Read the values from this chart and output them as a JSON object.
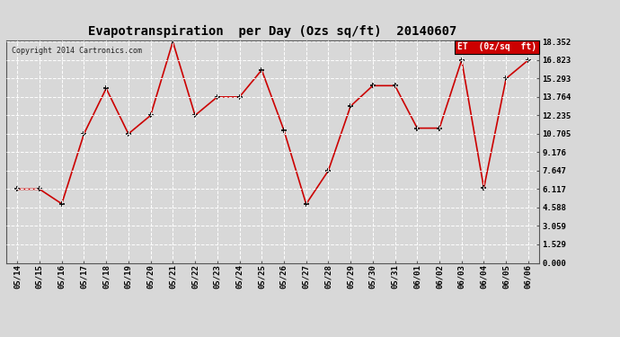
{
  "title": "Evapotranspiration  per Day (Ozs sq/ft)  20140607",
  "copyright": "Copyright 2014 Cartronics.com",
  "legend_label": "ET  (0z/sq  ft)",
  "x_labels": [
    "05/14",
    "05/15",
    "05/16",
    "05/17",
    "05/18",
    "05/19",
    "05/20",
    "05/21",
    "05/22",
    "05/23",
    "05/24",
    "05/25",
    "05/26",
    "05/27",
    "05/28",
    "05/29",
    "05/30",
    "05/31",
    "06/01",
    "06/02",
    "06/03",
    "06/04",
    "06/05",
    "06/06"
  ],
  "y_values": [
    6.117,
    6.117,
    4.9,
    10.705,
    14.47,
    10.705,
    12.235,
    18.352,
    12.235,
    13.764,
    13.764,
    16.0,
    11.0,
    4.88,
    7.647,
    13.0,
    14.7,
    14.7,
    11.176,
    11.176,
    16.823,
    6.2,
    15.293,
    16.823
  ],
  "y_min": 0.0,
  "y_max": 18.352,
  "y_ticks": [
    0.0,
    1.529,
    3.059,
    4.588,
    6.117,
    7.647,
    9.176,
    10.705,
    12.235,
    13.764,
    15.293,
    16.823,
    18.352
  ],
  "line_color": "#cc0000",
  "marker_color": "#000000",
  "bg_color": "#d8d8d8",
  "plot_bg_color": "#d8d8d8",
  "grid_color": "#ffffff",
  "title_color": "#000000",
  "legend_bg": "#cc0000",
  "legend_text_color": "#ffffff"
}
